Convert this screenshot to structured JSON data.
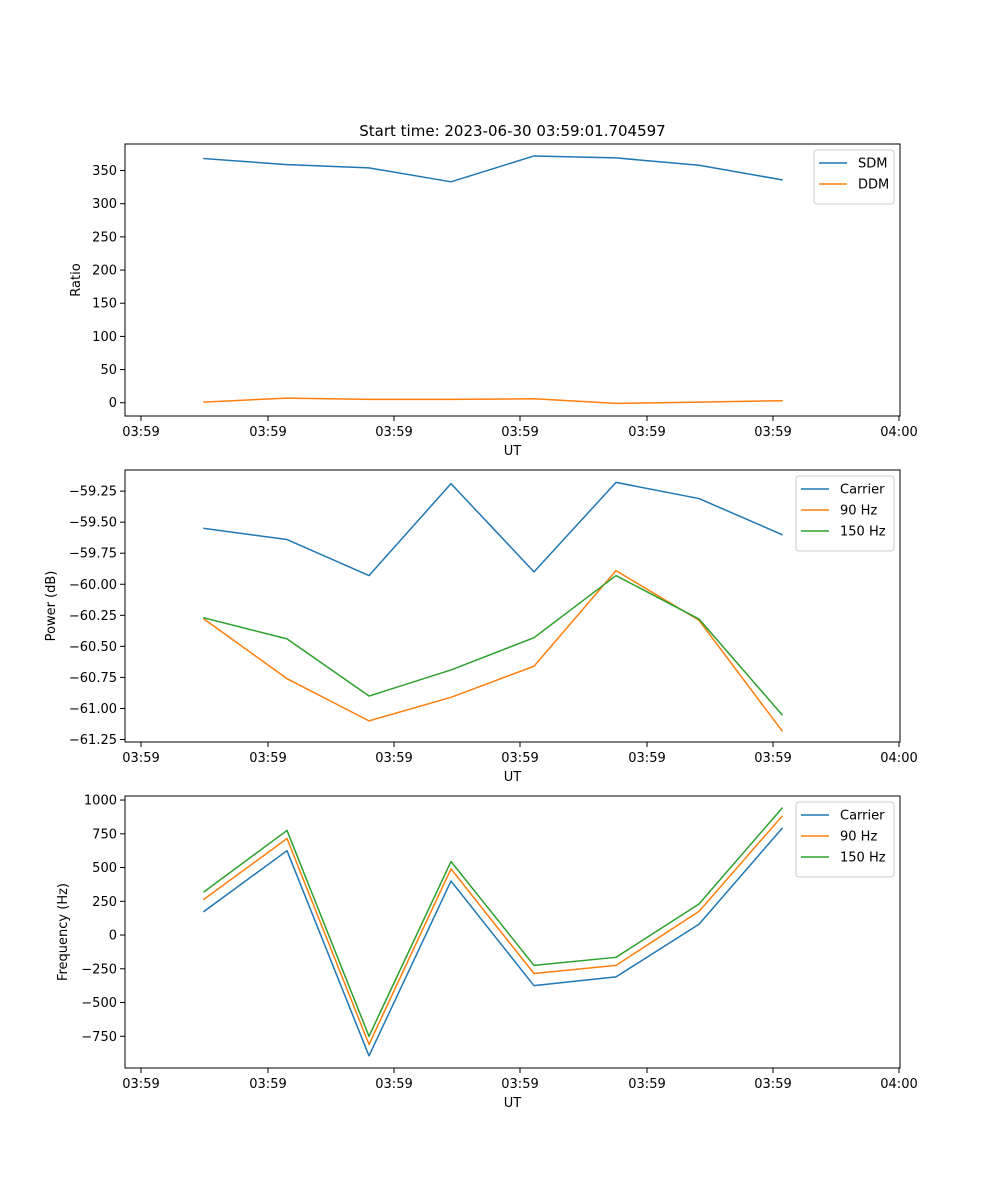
{
  "figure_title": "Start time: 2023-06-30 03:59:01.704597",
  "chart_data": [
    {
      "type": "line",
      "title": "Start time: 2023-06-30 03:59:01.704597",
      "xlabel": "UT",
      "ylabel": "Ratio",
      "x_tick_labels": [
        "03:59",
        "03:59",
        "03:59",
        "03:59",
        "03:59",
        "03:59",
        "04:00"
      ],
      "y_ticks": [
        0,
        50,
        100,
        150,
        200,
        250,
        300,
        350
      ],
      "y_tick_labels": [
        "0",
        "50",
        "100",
        "150",
        "200",
        "250",
        "300",
        "350"
      ],
      "ylim": [
        -20,
        390
      ],
      "legend_position": "top-right",
      "grid": false,
      "series": [
        {
          "name": "SDM",
          "color": "#1f77b4",
          "values": [
            368,
            359,
            354,
            333,
            372,
            369,
            358,
            336
          ]
        },
        {
          "name": "DDM",
          "color": "#ff7f0e",
          "values": [
            1,
            7,
            5,
            5,
            6,
            -1,
            1,
            3
          ]
        }
      ]
    },
    {
      "type": "line",
      "xlabel": "UT",
      "ylabel": "Power (dB)",
      "x_tick_labels": [
        "03:59",
        "03:59",
        "03:59",
        "03:59",
        "03:59",
        "03:59",
        "04:00"
      ],
      "y_ticks": [
        -61.25,
        -61.0,
        -60.75,
        -60.5,
        -60.25,
        -60.0,
        -59.75,
        -59.5,
        -59.25
      ],
      "y_tick_labels": [
        "−61.25",
        "−61.00",
        "−60.75",
        "−60.50",
        "−60.25",
        "−60.00",
        "−59.75",
        "−59.50",
        "−59.25"
      ],
      "ylim": [
        -61.27,
        -59.08
      ],
      "legend_position": "top-right",
      "grid": false,
      "series": [
        {
          "name": "Carrier",
          "color": "#1f77b4",
          "values": [
            -59.55,
            -59.64,
            -59.93,
            -59.19,
            -59.9,
            -59.18,
            -59.31,
            -59.6
          ]
        },
        {
          "name": "90 Hz",
          "color": "#ff7f0e",
          "values": [
            -60.28,
            -60.76,
            -61.1,
            -60.91,
            -60.66,
            -59.89,
            -60.29,
            -61.18
          ]
        },
        {
          "name": "150 Hz",
          "color": "#2ca02c",
          "values": [
            -60.27,
            -60.44,
            -60.9,
            -60.69,
            -60.43,
            -59.93,
            -60.28,
            -61.05
          ]
        }
      ]
    },
    {
      "type": "line",
      "xlabel": "UT",
      "ylabel": "Frequency (Hz)",
      "x_tick_labels": [
        "03:59",
        "03:59",
        "03:59",
        "03:59",
        "03:59",
        "03:59",
        "04:00"
      ],
      "y_ticks": [
        -750,
        -500,
        -250,
        0,
        250,
        500,
        750,
        1000
      ],
      "y_tick_labels": [
        "−750",
        "−500",
        "−250",
        "0",
        "250",
        "500",
        "750",
        "1000"
      ],
      "ylim": [
        -985,
        1030
      ],
      "legend_position": "top-right",
      "grid": false,
      "series": [
        {
          "name": "Carrier",
          "color": "#1f77b4",
          "values": [
            175,
            625,
            -895,
            400,
            -375,
            -310,
            80,
            790
          ]
        },
        {
          "name": "90 Hz",
          "color": "#ff7f0e",
          "values": [
            265,
            715,
            -810,
            490,
            -285,
            -225,
            175,
            880
          ]
        },
        {
          "name": "150 Hz",
          "color": "#2ca02c",
          "values": [
            320,
            775,
            -750,
            545,
            -225,
            -165,
            230,
            940
          ]
        }
      ]
    }
  ]
}
